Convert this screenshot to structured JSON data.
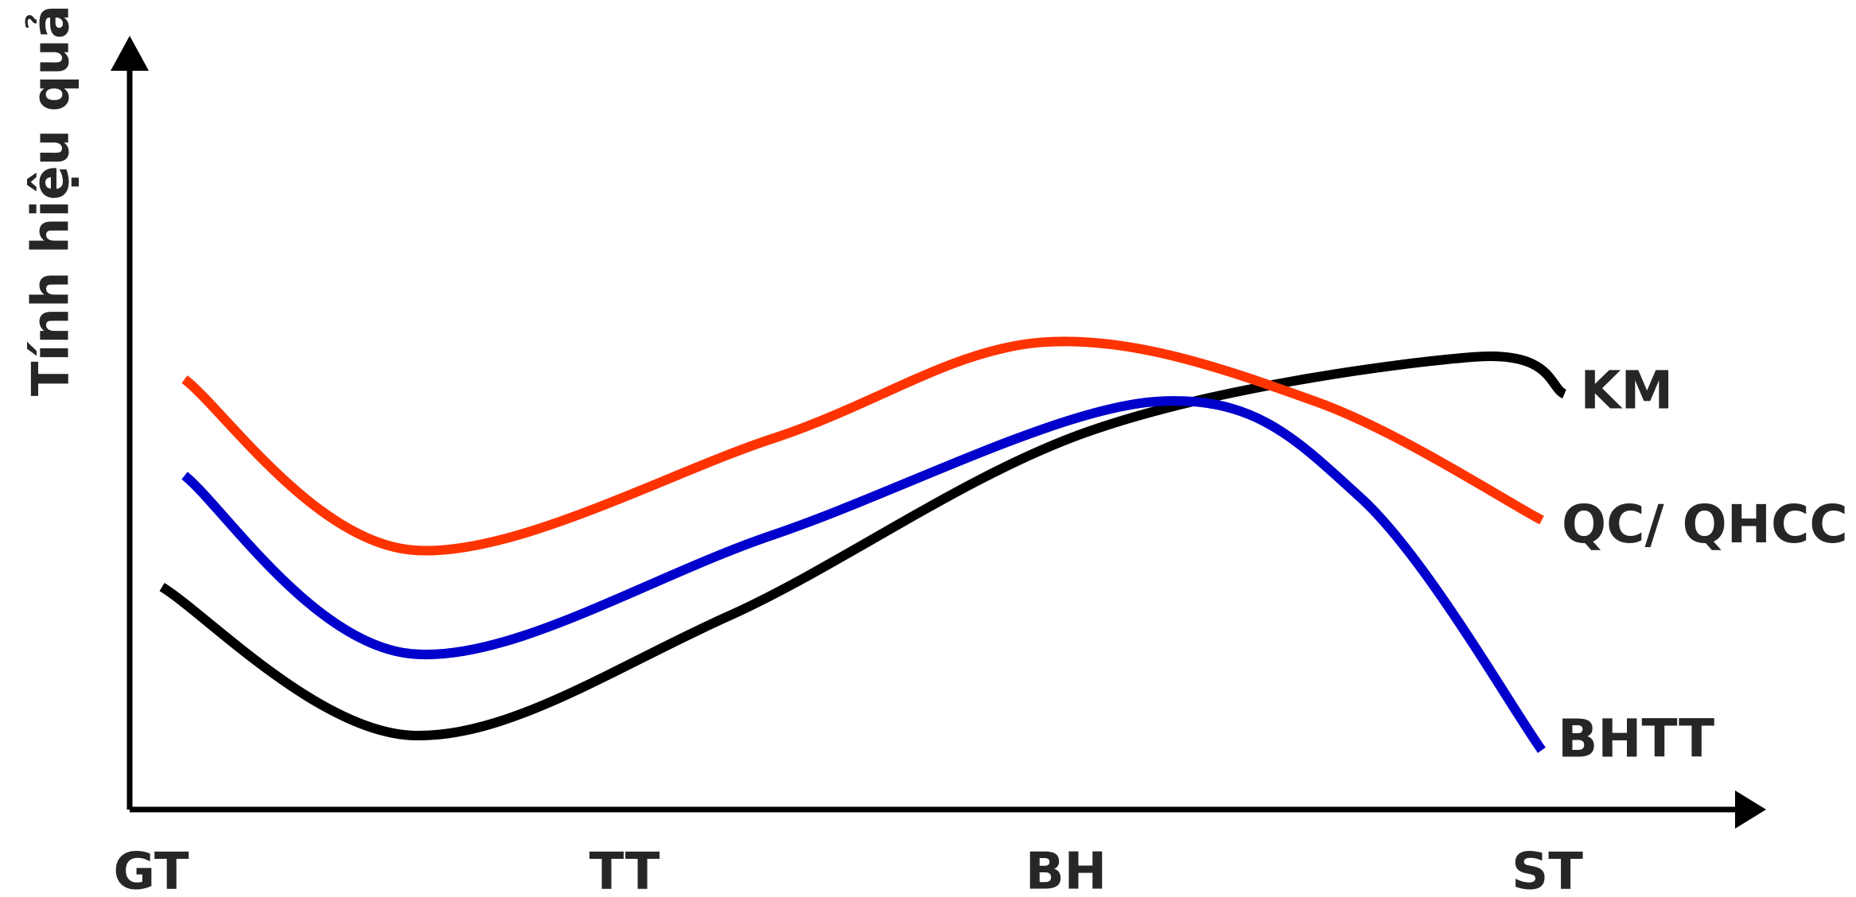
{
  "chart_data": {
    "type": "line",
    "ylabel": "Tính hiệu quả",
    "xlabel": "",
    "categories": [
      "GT",
      "TT",
      "BH",
      "ST"
    ],
    "x_range": [
      0,
      3
    ],
    "y_range": [
      0,
      10
    ],
    "grid": false,
    "legend": "inline labels at right end of each line",
    "series": [
      {
        "name": "KM",
        "color": "#000000",
        "points": [
          {
            "x": -0.05,
            "y": 3.0
          },
          {
            "x": 0.5,
            "y": 1.0
          },
          {
            "x": 1.2,
            "y": 2.6
          },
          {
            "x": 2.0,
            "y": 5.1
          },
          {
            "x": 2.85,
            "y": 6.1
          },
          {
            "x": 3.05,
            "y": 5.6
          }
        ]
      },
      {
        "name": "QC/ QHCC",
        "color": "#FF3300",
        "points": [
          {
            "x": 0.0,
            "y": 5.8
          },
          {
            "x": 0.5,
            "y": 3.5
          },
          {
            "x": 1.3,
            "y": 5.0
          },
          {
            "x": 1.9,
            "y": 6.3
          },
          {
            "x": 2.5,
            "y": 5.5
          },
          {
            "x": 3.0,
            "y": 3.9
          }
        ]
      },
      {
        "name": "BHTT",
        "color": "#0000CC",
        "points": [
          {
            "x": 0.0,
            "y": 4.5
          },
          {
            "x": 0.5,
            "y": 2.1
          },
          {
            "x": 1.3,
            "y": 3.7
          },
          {
            "x": 2.15,
            "y": 5.5
          },
          {
            "x": 2.6,
            "y": 4.2
          },
          {
            "x": 3.0,
            "y": 0.8
          }
        ]
      }
    ]
  }
}
